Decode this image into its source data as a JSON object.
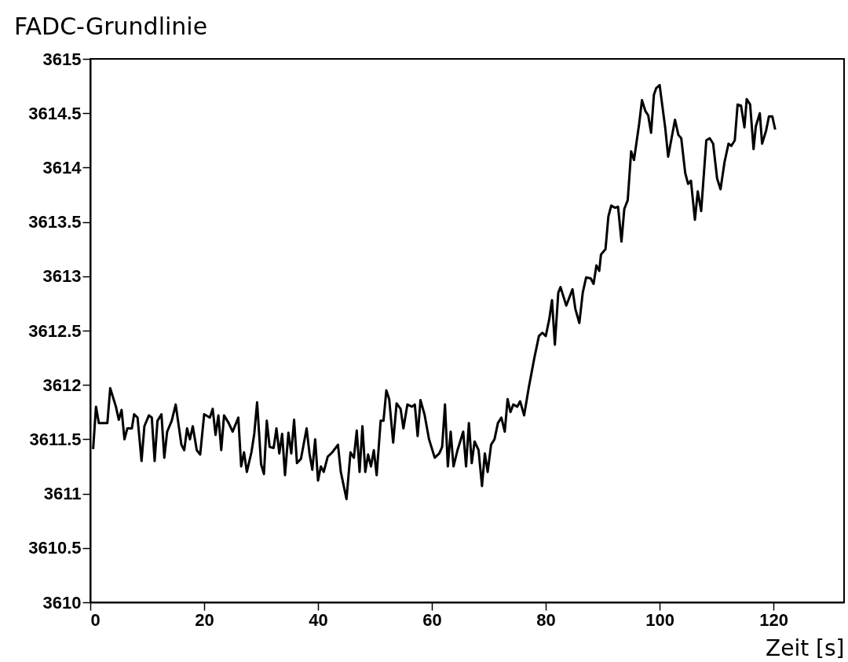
{
  "chart_data": {
    "type": "line",
    "title": "FADC-Grundlinie",
    "xlabel": "Zeit [s]",
    "x": [
      0.5,
      1,
      1.5,
      3,
      3.5,
      4.5,
      5,
      5.5,
      6,
      6.5,
      7.3,
      7.7,
      8.3,
      9,
      9.5,
      10.3,
      10.8,
      11.3,
      11.8,
      12.5,
      13,
      13.5,
      14.3,
      15,
      16,
      16.5,
      17,
      17.5,
      18,
      18.7,
      19.3,
      20,
      21,
      21.5,
      22,
      22.5,
      23,
      23.5,
      24.3,
      25,
      26,
      26.5,
      27,
      27.5,
      28.3,
      28.8,
      29.3,
      30,
      30.5,
      31,
      31.5,
      32.2,
      32.7,
      33.2,
      33.7,
      34.2,
      34.8,
      35.3,
      35.8,
      36.3,
      37,
      38,
      38.5,
      39,
      39.5,
      40,
      40.5,
      41,
      41.7,
      42.5,
      43.5,
      44,
      45,
      45.7,
      46.3,
      46.8,
      47.3,
      47.8,
      48.3,
      48.8,
      49.3,
      49.8,
      50.3,
      51,
      51.5,
      52,
      52.5,
      53.2,
      53.8,
      54.5,
      55,
      55.7,
      56.5,
      57,
      57.5,
      58,
      58.7,
      59.5,
      60.5,
      61.3,
      61.8,
      62.3,
      62.8,
      63.3,
      63.8,
      64.5,
      65.5,
      66,
      66.5,
      67,
      67.5,
      68.2,
      68.8,
      69.3,
      69.8,
      70.4,
      71,
      71.6,
      72.2,
      72.8,
      73.3,
      73.8,
      74.3,
      75,
      75.5,
      76.2,
      77,
      78,
      78.8,
      79.4,
      80,
      80.6,
      81.1,
      81.6,
      82.2,
      82.6,
      83.6,
      84.7,
      85.2,
      85.9,
      86.5,
      87.1,
      87.9,
      88.4,
      88.9,
      89.4,
      89.7,
      90.5,
      91,
      91.5,
      92.2,
      92.7,
      93.3,
      93.8,
      94.4,
      95,
      95.5,
      96.4,
      96.9,
      97.5,
      98,
      98.5,
      99,
      99.4,
      100,
      101,
      101.5,
      102.1,
      102.7,
      103.3,
      103.8,
      104.5,
      105,
      105.5,
      106.2,
      106.7,
      107.3,
      108.2,
      108.8,
      109.4,
      110.1,
      110.7,
      111.4,
      112.1,
      112.6,
      113.2,
      113.7,
      114.3,
      114.9,
      115.3,
      115.9,
      116.5,
      116.9,
      117.6,
      118,
      118.7,
      119.2,
      119.8,
      120.3
    ],
    "values": [
      3611.41,
      3611.8,
      3611.65,
      3611.65,
      3611.97,
      3611.8,
      3611.68,
      3611.77,
      3611.5,
      3611.6,
      3611.6,
      3611.73,
      3611.7,
      3611.3,
      3611.62,
      3611.72,
      3611.7,
      3611.3,
      3611.67,
      3611.73,
      3611.33,
      3611.57,
      3611.67,
      3611.82,
      3611.45,
      3611.4,
      3611.6,
      3611.5,
      3611.62,
      3611.4,
      3611.36,
      3611.73,
      3611.7,
      3611.78,
      3611.54,
      3611.72,
      3611.4,
      3611.72,
      3611.65,
      3611.57,
      3611.7,
      3611.25,
      3611.38,
      3611.2,
      3611.38,
      3611.55,
      3611.84,
      3611.27,
      3611.18,
      3611.67,
      3611.43,
      3611.42,
      3611.6,
      3611.37,
      3611.55,
      3611.17,
      3611.56,
      3611.37,
      3611.68,
      3611.28,
      3611.32,
      3611.6,
      3611.37,
      3611.22,
      3611.5,
      3611.12,
      3611.25,
      3611.2,
      3611.34,
      3611.38,
      3611.45,
      3611.2,
      3610.95,
      3611.38,
      3611.33,
      3611.58,
      3611.2,
      3611.62,
      3611.2,
      3611.36,
      3611.25,
      3611.4,
      3611.17,
      3611.67,
      3611.67,
      3611.95,
      3611.87,
      3611.47,
      3611.83,
      3611.78,
      3611.6,
      3611.82,
      3611.8,
      3611.82,
      3611.53,
      3611.86,
      3611.73,
      3611.5,
      3611.33,
      3611.37,
      3611.43,
      3611.82,
      3611.25,
      3611.57,
      3611.25,
      3611.4,
      3611.57,
      3611.25,
      3611.65,
      3611.28,
      3611.48,
      3611.4,
      3611.07,
      3611.37,
      3611.2,
      3611.45,
      3611.5,
      3611.65,
      3611.7,
      3611.57,
      3611.87,
      3611.75,
      3611.82,
      3611.8,
      3611.85,
      3611.72,
      3611.97,
      3612.25,
      3612.45,
      3612.48,
      3612.45,
      3612.6,
      3612.78,
      3612.37,
      3612.85,
      3612.9,
      3612.73,
      3612.88,
      3612.7,
      3612.57,
      3612.85,
      3612.99,
      3612.98,
      3612.93,
      3613.1,
      3613.05,
      3613.2,
      3613.25,
      3613.55,
      3613.65,
      3613.63,
      3613.64,
      3613.32,
      3613.62,
      3613.7,
      3614.15,
      3614.07,
      3614.4,
      3614.62,
      3614.52,
      3614.48,
      3614.32,
      3614.67,
      3614.73,
      3614.76,
      3614.36,
      3614.1,
      3614.27,
      3614.44,
      3614.3,
      3614.27,
      3613.95,
      3613.85,
      3613.88,
      3613.52,
      3613.78,
      3613.6,
      3614.25,
      3614.27,
      3614.22,
      3613.9,
      3613.8,
      3614.05,
      3614.22,
      3614.2,
      3614.25,
      3614.58,
      3614.57,
      3614.37,
      3614.63,
      3614.58,
      3614.17,
      3614.38,
      3614.5,
      3614.22,
      3614.34,
      3614.47,
      3614.47,
      3614.35
    ],
    "color": "#000000",
    "xlim": [
      0,
      132.4
    ],
    "xticks": [
      0,
      20,
      40,
      60,
      80,
      100,
      120
    ],
    "ylim": [
      3610,
      3615
    ],
    "yticks": [
      3610,
      3610.5,
      3611,
      3611.5,
      3612,
      3612.5,
      3613,
      3613.5,
      3614,
      3614.5,
      3615
    ],
    "grid": false,
    "marker": "none",
    "line_style": "solid"
  }
}
